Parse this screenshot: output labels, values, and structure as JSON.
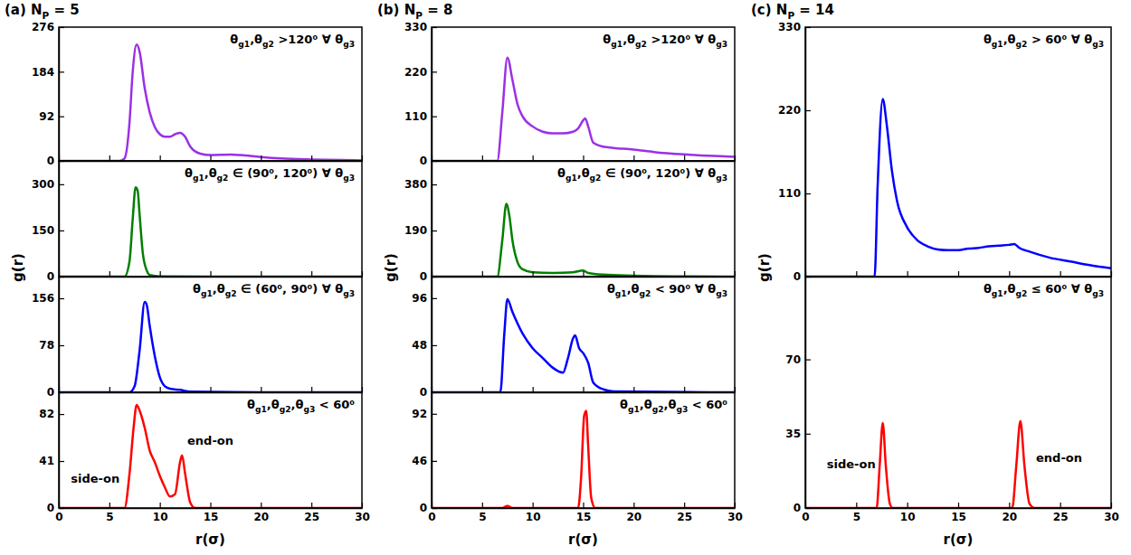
{
  "chart_data": [
    {
      "type": "line",
      "title": "(a) NP = 5",
      "ylabel": "g(r)",
      "annotations": [
        "θg1,θg2 >120⁰ ∀ θg3"
      ],
      "x": [
        0,
        6,
        6.5,
        7,
        7.3,
        7.7,
        8,
        8.5,
        9,
        9.5,
        10,
        10.5,
        11,
        11.5,
        12,
        12.5,
        13,
        14,
        15,
        17,
        18,
        20,
        22,
        25,
        28,
        30
      ],
      "series": [
        {
          "color": "#9b30e6",
          "values": [
            0,
            0,
            5,
            80,
            180,
            240,
            225,
            150,
            100,
            70,
            55,
            50,
            50,
            55,
            58,
            50,
            30,
            15,
            12,
            13,
            12,
            8,
            5,
            3,
            2,
            1
          ]
        }
      ],
      "xlim": [
        0,
        30
      ],
      "xticks": [
        0,
        5,
        10,
        15,
        20,
        25,
        30
      ],
      "ylim": [
        0,
        276
      ],
      "yticks": [
        0,
        92,
        184,
        276
      ],
      "tick_labels": "y"
    },
    {
      "type": "line",
      "annotations": [
        "θg1,θg2 ∈ (90⁰, 120⁰) ∀ θg3"
      ],
      "x": [
        0,
        6.5,
        7,
        7.3,
        7.6,
        7.8,
        8,
        8.3,
        8.7,
        9,
        10,
        15,
        20,
        30
      ],
      "series": [
        {
          "color": "#008000",
          "values": [
            0,
            0,
            50,
            180,
            290,
            280,
            200,
            80,
            20,
            5,
            1,
            0,
            0,
            0
          ]
        }
      ],
      "xlim": [
        0,
        30
      ],
      "xticks": [
        0,
        5,
        10,
        15,
        20,
        25,
        30
      ],
      "ylim": [
        0,
        376
      ],
      "yticks": [
        0,
        150,
        300
      ],
      "tick_labels": "y"
    },
    {
      "type": "line",
      "annotations": [
        "θg1,θg2 ∈ (60⁰, 90⁰) ∀ θg3"
      ],
      "x": [
        0,
        7,
        7.5,
        8,
        8.5,
        8.7,
        9,
        9.5,
        10,
        10.5,
        11,
        12,
        13,
        20,
        30
      ],
      "series": [
        {
          "color": "#0000ff",
          "values": [
            0,
            0,
            10,
            70,
            150,
            145,
            110,
            60,
            25,
            10,
            6,
            4,
            1,
            0,
            0
          ]
        }
      ],
      "xlim": [
        0,
        30
      ],
      "xticks": [
        0,
        5,
        10,
        15,
        20,
        25,
        30
      ],
      "ylim": [
        0,
        192
      ],
      "yticks": [
        0,
        78,
        156
      ],
      "tick_labels": "y"
    },
    {
      "type": "line",
      "xlabel": "r(σ)",
      "annotations": [
        "θg1,θg2,θg3 < 60⁰",
        "side-on",
        "end-on"
      ],
      "x": [
        0,
        6.5,
        7,
        7.4,
        7.7,
        8,
        8.5,
        9,
        9.5,
        10,
        10.5,
        11,
        11.5,
        12,
        12.2,
        12.5,
        13,
        13.5,
        20,
        30
      ],
      "series": [
        {
          "color": "#ff0000",
          "values": [
            0,
            0,
            30,
            70,
            90,
            85,
            70,
            50,
            40,
            28,
            18,
            10,
            12,
            40,
            46,
            30,
            5,
            0,
            0,
            0
          ]
        }
      ],
      "xlim": [
        0,
        30
      ],
      "xticks": [
        0,
        5,
        10,
        15,
        20,
        25,
        30
      ],
      "ylim": [
        0,
        101
      ],
      "yticks": [
        0,
        41,
        82
      ]
    },
    {
      "type": "line",
      "title": "(b) NP = 8",
      "ylabel": "g(r)",
      "annotations": [
        "θg1,θg2 >120⁰ ∀ θg3"
      ],
      "x": [
        0,
        6.5,
        7,
        7.5,
        8,
        8.5,
        9,
        10,
        11,
        12,
        13,
        14,
        14.5,
        15,
        15.2,
        15.5,
        16,
        17,
        18,
        20,
        22,
        25,
        28,
        30
      ],
      "series": [
        {
          "color": "#9b30e6",
          "values": [
            0,
            0,
            120,
            255,
            200,
            140,
            110,
            85,
            72,
            68,
            68,
            72,
            80,
            100,
            105,
            85,
            45,
            35,
            32,
            28,
            22,
            16,
            12,
            10
          ]
        }
      ],
      "xlim": [
        0,
        30
      ],
      "xticks": [
        0,
        5,
        10,
        15,
        20,
        25,
        30
      ],
      "ylim": [
        0,
        330
      ],
      "yticks": [
        0,
        110,
        220,
        330
      ],
      "tick_labels": "y"
    },
    {
      "type": "line",
      "annotations": [
        "θg1,θg2 ∈ (90⁰, 120⁰) ∀ θg3"
      ],
      "x": [
        0,
        6.5,
        7,
        7.4,
        7.7,
        8,
        8.5,
        9,
        10,
        12,
        14,
        15,
        15.5,
        17,
        20,
        25,
        30
      ],
      "series": [
        {
          "color": "#008000",
          "values": [
            0,
            0,
            150,
            300,
            250,
            150,
            60,
            30,
            18,
            15,
            18,
            25,
            15,
            8,
            4,
            1,
            0
          ]
        }
      ],
      "xlim": [
        0,
        30
      ],
      "xticks": [
        0,
        5,
        10,
        15,
        20,
        25,
        30
      ],
      "ylim": [
        0,
        477
      ],
      "yticks": [
        0,
        190,
        380
      ],
      "tick_labels": "y"
    },
    {
      "type": "line",
      "annotations": [
        "θg1,θg2 < 90⁰ ∀ θg3"
      ],
      "x": [
        0,
        6.8,
        7.2,
        7.5,
        8,
        9,
        10,
        11,
        12,
        13,
        13.5,
        14,
        14.2,
        14.6,
        15,
        15.5,
        16,
        17,
        18,
        30
      ],
      "series": [
        {
          "color": "#0000ff",
          "values": [
            0,
            0,
            60,
            95,
            82,
            60,
            45,
            35,
            25,
            20,
            35,
            55,
            58,
            45,
            40,
            30,
            10,
            3,
            1,
            0
          ]
        }
      ],
      "xlim": [
        0,
        30
      ],
      "xticks": [
        0,
        5,
        10,
        15,
        20,
        25,
        30
      ],
      "ylim": [
        0,
        118
      ],
      "yticks": [
        0,
        48,
        96
      ],
      "tick_labels": "y"
    },
    {
      "type": "line",
      "xlabel": "r(σ)",
      "annotations": [
        "θg1,θg2,θg3 < 60⁰"
      ],
      "x": [
        0,
        7,
        7.5,
        8,
        14.5,
        14.8,
        15.1,
        15.3,
        15.5,
        15.8,
        16.2,
        30
      ],
      "series": [
        {
          "color": "#ff0000",
          "values": [
            0,
            0,
            2,
            0,
            0,
            30,
            90,
            95,
            60,
            10,
            0,
            0
          ]
        }
      ],
      "xlim": [
        0,
        30
      ],
      "xticks": [
        0,
        5,
        10,
        15,
        20,
        25,
        30
      ],
      "ylim": [
        0,
        113
      ],
      "yticks": [
        0,
        46,
        92
      ]
    },
    {
      "type": "line",
      "title": "(c) NP = 14",
      "ylabel": "g(r)",
      "annotations": [
        "θg1,θg2 > 60⁰ ∀ θg3"
      ],
      "x": [
        0,
        6.8,
        7.1,
        7.6,
        8,
        8.5,
        9,
        10,
        11,
        12,
        13,
        14,
        15,
        16,
        17,
        18,
        19,
        20,
        20.5,
        21,
        22,
        24,
        26,
        28,
        30
      ],
      "series": [
        {
          "color": "#0000ff",
          "values": [
            0,
            0,
            120,
            235,
            200,
            140,
            100,
            65,
            48,
            40,
            36,
            35,
            35,
            37,
            38,
            40,
            41,
            42,
            43,
            38,
            33,
            25,
            20,
            15,
            11
          ]
        }
      ],
      "xlim": [
        0,
        30
      ],
      "xticks": [
        0,
        5,
        10,
        15,
        20,
        25,
        30
      ],
      "ylim": [
        0,
        330
      ],
      "yticks": [
        0,
        110,
        220,
        330
      ],
      "tick_labels": "y"
    },
    {
      "type": "line",
      "xlabel": "r(σ)",
      "annotations": [
        "θg1,θg2 ≤ 60⁰ ∀ θg3",
        "side-on",
        "end-on"
      ],
      "x": [
        0,
        7,
        7.3,
        7.6,
        7.9,
        8.3,
        8.6,
        20.3,
        20.7,
        21.1,
        21.5,
        22,
        22.5,
        30
      ],
      "series": [
        {
          "color": "#ff0000",
          "values": [
            0,
            0,
            20,
            40,
            20,
            2,
            0,
            0,
            20,
            41,
            20,
            2,
            0,
            0
          ]
        }
      ],
      "xlim": [
        0,
        30
      ],
      "xticks": [
        0,
        5,
        10,
        15,
        20,
        25,
        30
      ],
      "ylim": [
        0,
        109
      ],
      "yticks": [
        0,
        35,
        70
      ]
    }
  ]
}
